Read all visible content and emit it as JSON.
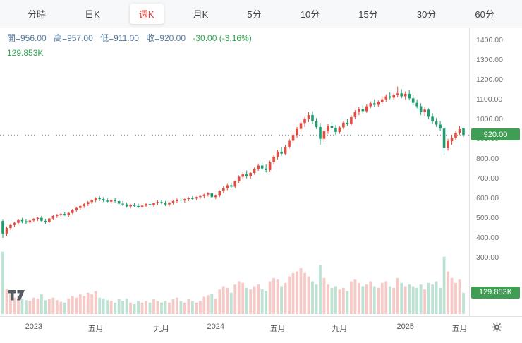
{
  "tabs": {
    "items": [
      "分時",
      "日K",
      "週K",
      "月K",
      "5分",
      "10分",
      "15分",
      "30分",
      "60分"
    ],
    "active": "週K"
  },
  "info": {
    "open": "開=956.00",
    "high": "高=957.00",
    "low": "低=911.00",
    "close": "收=920.00",
    "change": "-30.00 (-3.16%)",
    "volume": "129.853K"
  },
  "y_axis": {
    "price_badge": "920.00",
    "volume_badge": "129.853K"
  },
  "x_axis": {
    "gear_icon": "settings-gear",
    "logo_icon": "tradingview-logo"
  },
  "colors": {
    "accent_red": "#e23e3a",
    "up": "#e34d42",
    "down": "#1e9e6d",
    "badge_green": "#3f9e54",
    "text_green": "#2aa54e",
    "info_blue": "#567a9e",
    "dotted_line": "#909499"
  },
  "chart_data": {
    "type": "candlestick",
    "interval_label": "週K",
    "color_convention": "taiwan-red-up-green-down",
    "title": "",
    "price_axis": {
      "min": 300,
      "max": 1400,
      "tick_step": 100,
      "tick_format": "0.00"
    },
    "volume_axis_max_k": 400,
    "last_price": 920.0,
    "last_volume_k": 129.853,
    "x_ticks": [
      {
        "label": "2023",
        "week": 8
      },
      {
        "label": "五月",
        "week": 24
      },
      {
        "label": "九月",
        "week": 41
      },
      {
        "label": "2024",
        "week": 55
      },
      {
        "label": "五月",
        "week": 71
      },
      {
        "label": "九月",
        "week": 87
      },
      {
        "label": "2025",
        "week": 104
      },
      {
        "label": "五月",
        "week": 118
      }
    ],
    "ohlcv_weekly": [
      [
        485,
        492,
        400,
        422,
        380
      ],
      [
        422,
        458,
        410,
        450,
        150
      ],
      [
        450,
        472,
        440,
        465,
        120
      ],
      [
        465,
        480,
        455,
        476,
        100
      ],
      [
        476,
        495,
        466,
        490,
        110
      ],
      [
        490,
        501,
        474,
        484,
        90
      ],
      [
        484,
        494,
        470,
        478,
        85
      ],
      [
        478,
        491,
        468,
        488,
        80
      ],
      [
        488,
        500,
        480,
        496,
        100
      ],
      [
        496,
        506,
        486,
        501,
        95
      ],
      [
        501,
        511,
        481,
        486,
        120
      ],
      [
        486,
        496,
        470,
        480,
        85
      ],
      [
        480,
        500,
        475,
        498,
        90
      ],
      [
        498,
        515,
        490,
        511,
        100
      ],
      [
        511,
        521,
        501,
        516,
        85
      ],
      [
        516,
        526,
        506,
        521,
        75
      ],
      [
        521,
        531,
        511,
        515,
        70
      ],
      [
        515,
        531,
        505,
        526,
        95
      ],
      [
        526,
        546,
        520,
        541,
        110
      ],
      [
        541,
        556,
        531,
        551,
        100
      ],
      [
        551,
        566,
        541,
        561,
        120
      ],
      [
        561,
        576,
        551,
        571,
        110
      ],
      [
        571,
        586,
        561,
        581,
        130
      ],
      [
        581,
        596,
        571,
        591,
        120
      ],
      [
        591,
        606,
        581,
        601,
        140
      ],
      [
        601,
        611,
        586,
        596,
        100
      ],
      [
        596,
        606,
        581,
        589,
        95
      ],
      [
        589,
        601,
        576,
        583,
        85
      ],
      [
        583,
        596,
        571,
        591,
        80
      ],
      [
        591,
        601,
        579,
        586,
        70
      ],
      [
        586,
        593,
        566,
        573,
        90
      ],
      [
        573,
        586,
        561,
        569,
        80
      ],
      [
        569,
        579,
        553,
        559,
        95
      ],
      [
        559,
        571,
        549,
        566,
        70
      ],
      [
        566,
        576,
        556,
        561,
        60
      ],
      [
        561,
        573,
        551,
        556,
        80
      ],
      [
        556,
        569,
        546,
        563,
        70
      ],
      [
        563,
        576,
        556,
        571,
        80
      ],
      [
        571,
        583,
        561,
        566,
        70
      ],
      [
        566,
        579,
        556,
        576,
        90
      ],
      [
        576,
        589,
        566,
        581,
        80
      ],
      [
        581,
        593,
        571,
        576,
        70
      ],
      [
        576,
        586,
        561,
        569,
        80
      ],
      [
        569,
        581,
        559,
        579,
        70
      ],
      [
        579,
        591,
        569,
        586,
        90
      ],
      [
        586,
        599,
        576,
        593,
        100
      ],
      [
        593,
        601,
        581,
        589,
        80
      ],
      [
        589,
        599,
        579,
        596,
        70
      ],
      [
        596,
        606,
        586,
        601,
        90
      ],
      [
        601,
        611,
        591,
        599,
        80
      ],
      [
        599,
        609,
        589,
        606,
        70
      ],
      [
        606,
        616,
        596,
        611,
        80
      ],
      [
        611,
        623,
        601,
        619,
        105
      ],
      [
        619,
        631,
        609,
        626,
        115
      ],
      [
        626,
        629,
        601,
        606,
        125
      ],
      [
        606,
        619,
        596,
        613,
        95
      ],
      [
        613,
        641,
        606,
        636,
        150
      ],
      [
        636,
        661,
        626,
        651,
        170
      ],
      [
        651,
        673,
        641,
        666,
        160
      ],
      [
        666,
        681,
        651,
        659,
        130
      ],
      [
        659,
        691,
        651,
        686,
        180
      ],
      [
        686,
        716,
        676,
        709,
        200
      ],
      [
        709,
        731,
        696,
        721,
        190
      ],
      [
        721,
        741,
        701,
        711,
        160
      ],
      [
        711,
        736,
        699,
        729,
        150
      ],
      [
        729,
        756,
        719,
        749,
        170
      ],
      [
        749,
        776,
        739,
        766,
        180
      ],
      [
        766,
        781,
        741,
        751,
        150
      ],
      [
        751,
        771,
        731,
        743,
        140
      ],
      [
        743,
        791,
        736,
        783,
        200
      ],
      [
        783,
        821,
        771,
        811,
        220
      ],
      [
        811,
        846,
        796,
        836,
        210
      ],
      [
        836,
        861,
        816,
        826,
        170
      ],
      [
        826,
        871,
        819,
        861,
        190
      ],
      [
        861,
        901,
        851,
        891,
        230
      ],
      [
        891,
        931,
        879,
        921,
        250
      ],
      [
        921,
        961,
        906,
        951,
        260
      ],
      [
        951,
        991,
        936,
        981,
        280
      ],
      [
        981,
        1011,
        961,
        1001,
        250
      ],
      [
        1001,
        1036,
        986,
        1021,
        230
      ],
      [
        1021,
        1041,
        976,
        991,
        200
      ],
      [
        991,
        1006,
        951,
        961,
        180
      ],
      [
        961,
        981,
        871,
        901,
        300
      ],
      [
        901,
        951,
        886,
        941,
        220
      ],
      [
        941,
        976,
        926,
        966,
        180
      ],
      [
        966,
        986,
        946,
        956,
        160
      ],
      [
        956,
        971,
        921,
        936,
        170
      ],
      [
        936,
        966,
        926,
        959,
        150
      ],
      [
        959,
        991,
        949,
        983,
        160
      ],
      [
        983,
        1001,
        966,
        976,
        140
      ],
      [
        976,
        1021,
        969,
        1011,
        200
      ],
      [
        1011,
        1046,
        1001,
        1036,
        210
      ],
      [
        1036,
        1061,
        1021,
        1051,
        190
      ],
      [
        1051,
        1071,
        1031,
        1041,
        170
      ],
      [
        1041,
        1076,
        1033,
        1066,
        180
      ],
      [
        1066,
        1091,
        1056,
        1081,
        200
      ],
      [
        1081,
        1101,
        1061,
        1073,
        170
      ],
      [
        1073,
        1096,
        1063,
        1089,
        160
      ],
      [
        1089,
        1111,
        1079,
        1101,
        190
      ],
      [
        1101,
        1126,
        1089,
        1116,
        200
      ],
      [
        1116,
        1136,
        1101,
        1109,
        170
      ],
      [
        1109,
        1131,
        1096,
        1123,
        160
      ],
      [
        1123,
        1166,
        1111,
        1131,
        220
      ],
      [
        1131,
        1151,
        1106,
        1116,
        190
      ],
      [
        1116,
        1141,
        1101,
        1129,
        170
      ],
      [
        1129,
        1146,
        1096,
        1106,
        180
      ],
      [
        1106,
        1121,
        1071,
        1083,
        170
      ],
      [
        1083,
        1101,
        1056,
        1066,
        160
      ],
      [
        1066,
        1081,
        1021,
        1036,
        180
      ],
      [
        1036,
        1061,
        1016,
        1049,
        150
      ],
      [
        1049,
        1056,
        1001,
        1013,
        190
      ],
      [
        1013,
        1031,
        976,
        989,
        180
      ],
      [
        989,
        1006,
        961,
        973,
        200
      ],
      [
        973,
        991,
        941,
        953,
        160
      ],
      [
        953,
        966,
        821,
        856,
        350
      ],
      [
        856,
        901,
        841,
        889,
        260
      ],
      [
        889,
        921,
        871,
        906,
        220
      ],
      [
        906,
        941,
        896,
        931,
        190
      ],
      [
        931,
        966,
        921,
        950,
        210
      ],
      [
        956,
        957,
        911,
        920,
        129.853
      ]
    ]
  }
}
